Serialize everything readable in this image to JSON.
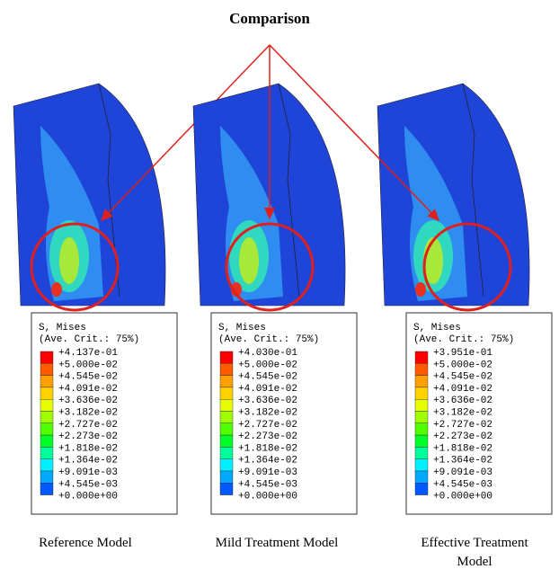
{
  "title": "Comparison",
  "panels": [
    {
      "legend": {
        "header": [
          "S, Mises",
          "(Ave. Crit.: 75%)"
        ],
        "labels": [
          "+4.137e-01",
          "+5.000e-02",
          "+4.545e-02",
          "+4.091e-02",
          "+3.636e-02",
          "+3.182e-02",
          "+2.727e-02",
          "+2.273e-02",
          "+1.818e-02",
          "+1.364e-02",
          "+9.091e-03",
          "+4.545e-03",
          "+0.000e+00"
        ]
      },
      "caption": [
        "Reference Model"
      ]
    },
    {
      "legend": {
        "header": [
          "S, Mises",
          "(Ave. Crit.: 75%)"
        ],
        "labels": [
          "+4.030e-01",
          "+5.000e-02",
          "+4.545e-02",
          "+4.091e-02",
          "+3.636e-02",
          "+3.182e-02",
          "+2.727e-02",
          "+2.273e-02",
          "+1.818e-02",
          "+1.364e-02",
          "+9.091e-03",
          "+4.545e-03",
          "+0.000e+00"
        ]
      },
      "caption": [
        "Mild Treatment Model"
      ]
    },
    {
      "legend": {
        "header": [
          "S, Mises",
          "(Ave. Crit.: 75%)"
        ],
        "labels": [
          "+3.951e-01",
          "+5.000e-02",
          "+4.545e-02",
          "+4.091e-02",
          "+3.636e-02",
          "+3.182e-02",
          "+2.727e-02",
          "+2.273e-02",
          "+1.818e-02",
          "+1.364e-02",
          "+9.091e-03",
          "+4.545e-03",
          "+0.000e+00"
        ]
      },
      "caption": [
        "Effective Treatment",
        "Model"
      ]
    }
  ]
}
